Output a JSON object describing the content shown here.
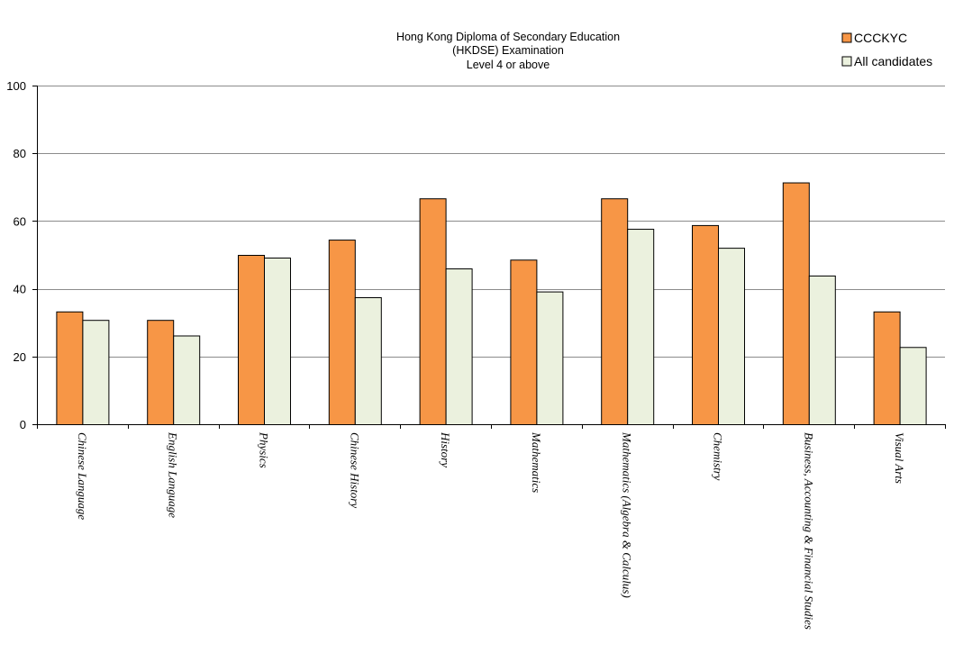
{
  "chart_data": {
    "type": "bar",
    "title_lines": [
      "Hong Kong Diploma of Secondary Education",
      "(HKDSE) Examination",
      "Level 4 or above"
    ],
    "xlabel": "",
    "ylabel": "",
    "ylim": [
      0,
      100
    ],
    "yticks": [
      "0",
      "20",
      "40",
      "60",
      "80",
      "100"
    ],
    "grid": true,
    "legend_position": "top-right",
    "categories": [
      "Chinese Language",
      "English Language",
      "Physics",
      "Chinese History",
      "History",
      "Mathematics",
      "Mathematics (Algebra & Calculus)",
      "Chemistry",
      "Business, Accounting & Financial Studies",
      "Visual Arts"
    ],
    "series": [
      {
        "name": "CCCKYC",
        "color": "#F79646",
        "values": [
          33.3,
          30.8,
          50.0,
          54.5,
          66.7,
          48.6,
          66.7,
          58.8,
          71.4,
          33.3
        ]
      },
      {
        "name": "All candidates",
        "color": "#EBF1DE",
        "values": [
          30.8,
          26.2,
          49.2,
          37.5,
          46.0,
          39.2,
          57.7,
          52.1,
          43.9,
          22.8
        ]
      }
    ]
  }
}
